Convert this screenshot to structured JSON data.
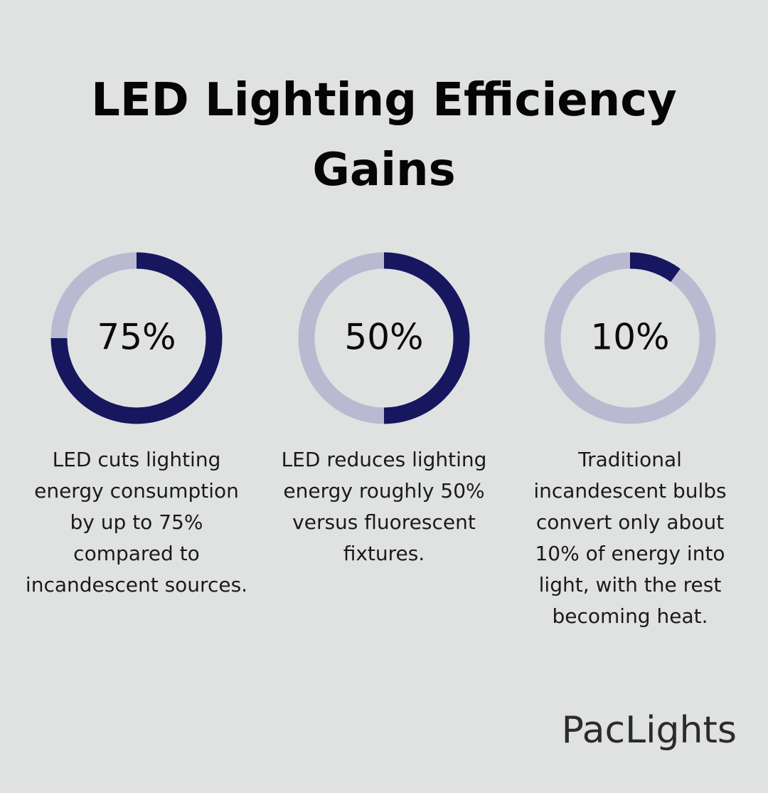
{
  "title": "LED Lighting Efficiency Gains",
  "brand": "PacLights",
  "chart_data": [
    {
      "type": "donut",
      "values": [
        75,
        25
      ],
      "value_labels": [
        "75%",
        null
      ],
      "colors": [
        "#16175e",
        "#b9bad1"
      ],
      "description": "LED cuts lighting energy consumption by up to 75% compared to incandescent sources."
    },
    {
      "type": "donut",
      "values": [
        50,
        50
      ],
      "value_labels": [
        "50%",
        null
      ],
      "colors": [
        "#16175e",
        "#b9bad1"
      ],
      "description": "LED reduces lighting energy roughly 50% versus fluorescent fixtures."
    },
    {
      "type": "donut",
      "values": [
        10,
        90
      ],
      "value_labels": [
        "10%",
        null
      ],
      "colors": [
        "#16175e",
        "#b9bad1"
      ],
      "description": "Traditional incandescent bulbs convert only about 10% of energy into light, with the rest becoming heat."
    }
  ]
}
